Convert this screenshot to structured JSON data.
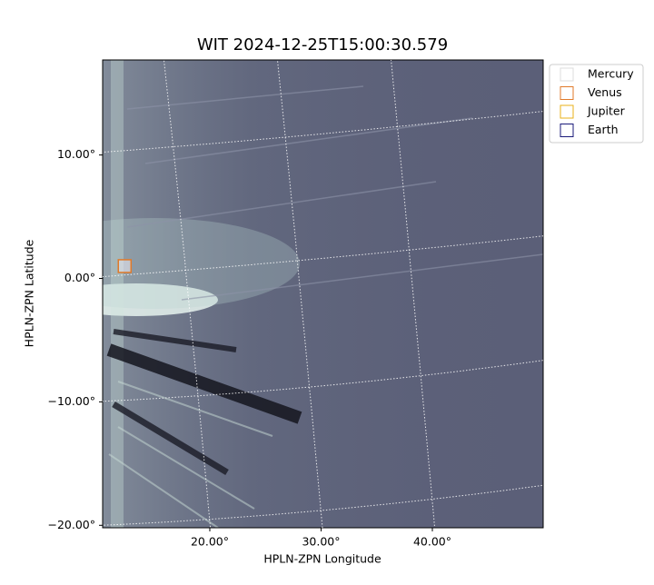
{
  "chart_data": {
    "type": "image",
    "title": "WIT 2024-12-25T15:00:30.579",
    "x_label": "HPLN-ZPN Longitude",
    "y_label": "HPLN-ZPN Latitude",
    "xlim": [
      10.37,
      49.96
    ],
    "ylim": [
      -20.2,
      17.7
    ],
    "xticks": [
      {
        "value": 20,
        "label": "20.00°"
      },
      {
        "value": 30,
        "label": "30.00°"
      },
      {
        "value": 40,
        "label": "40.00°"
      }
    ],
    "yticks": [
      {
        "value": -20,
        "label": "−20.00°"
      },
      {
        "value": -10,
        "label": "−10.00°"
      },
      {
        "value": 0,
        "label": "0.00°"
      },
      {
        "value": 10,
        "label": "10.00°"
      }
    ],
    "grid": true,
    "legend": "upper right outside",
    "series": [
      {
        "name": "Mercury",
        "color": "#dddddd"
      },
      {
        "name": "Venus",
        "color": "#e07a2a",
        "x": [
          12.35
        ],
        "y": [
          1.0
        ]
      },
      {
        "name": "Jupiter",
        "color": "#e8b21a"
      },
      {
        "name": "Earth",
        "color": "#1a1a7a"
      }
    ]
  }
}
